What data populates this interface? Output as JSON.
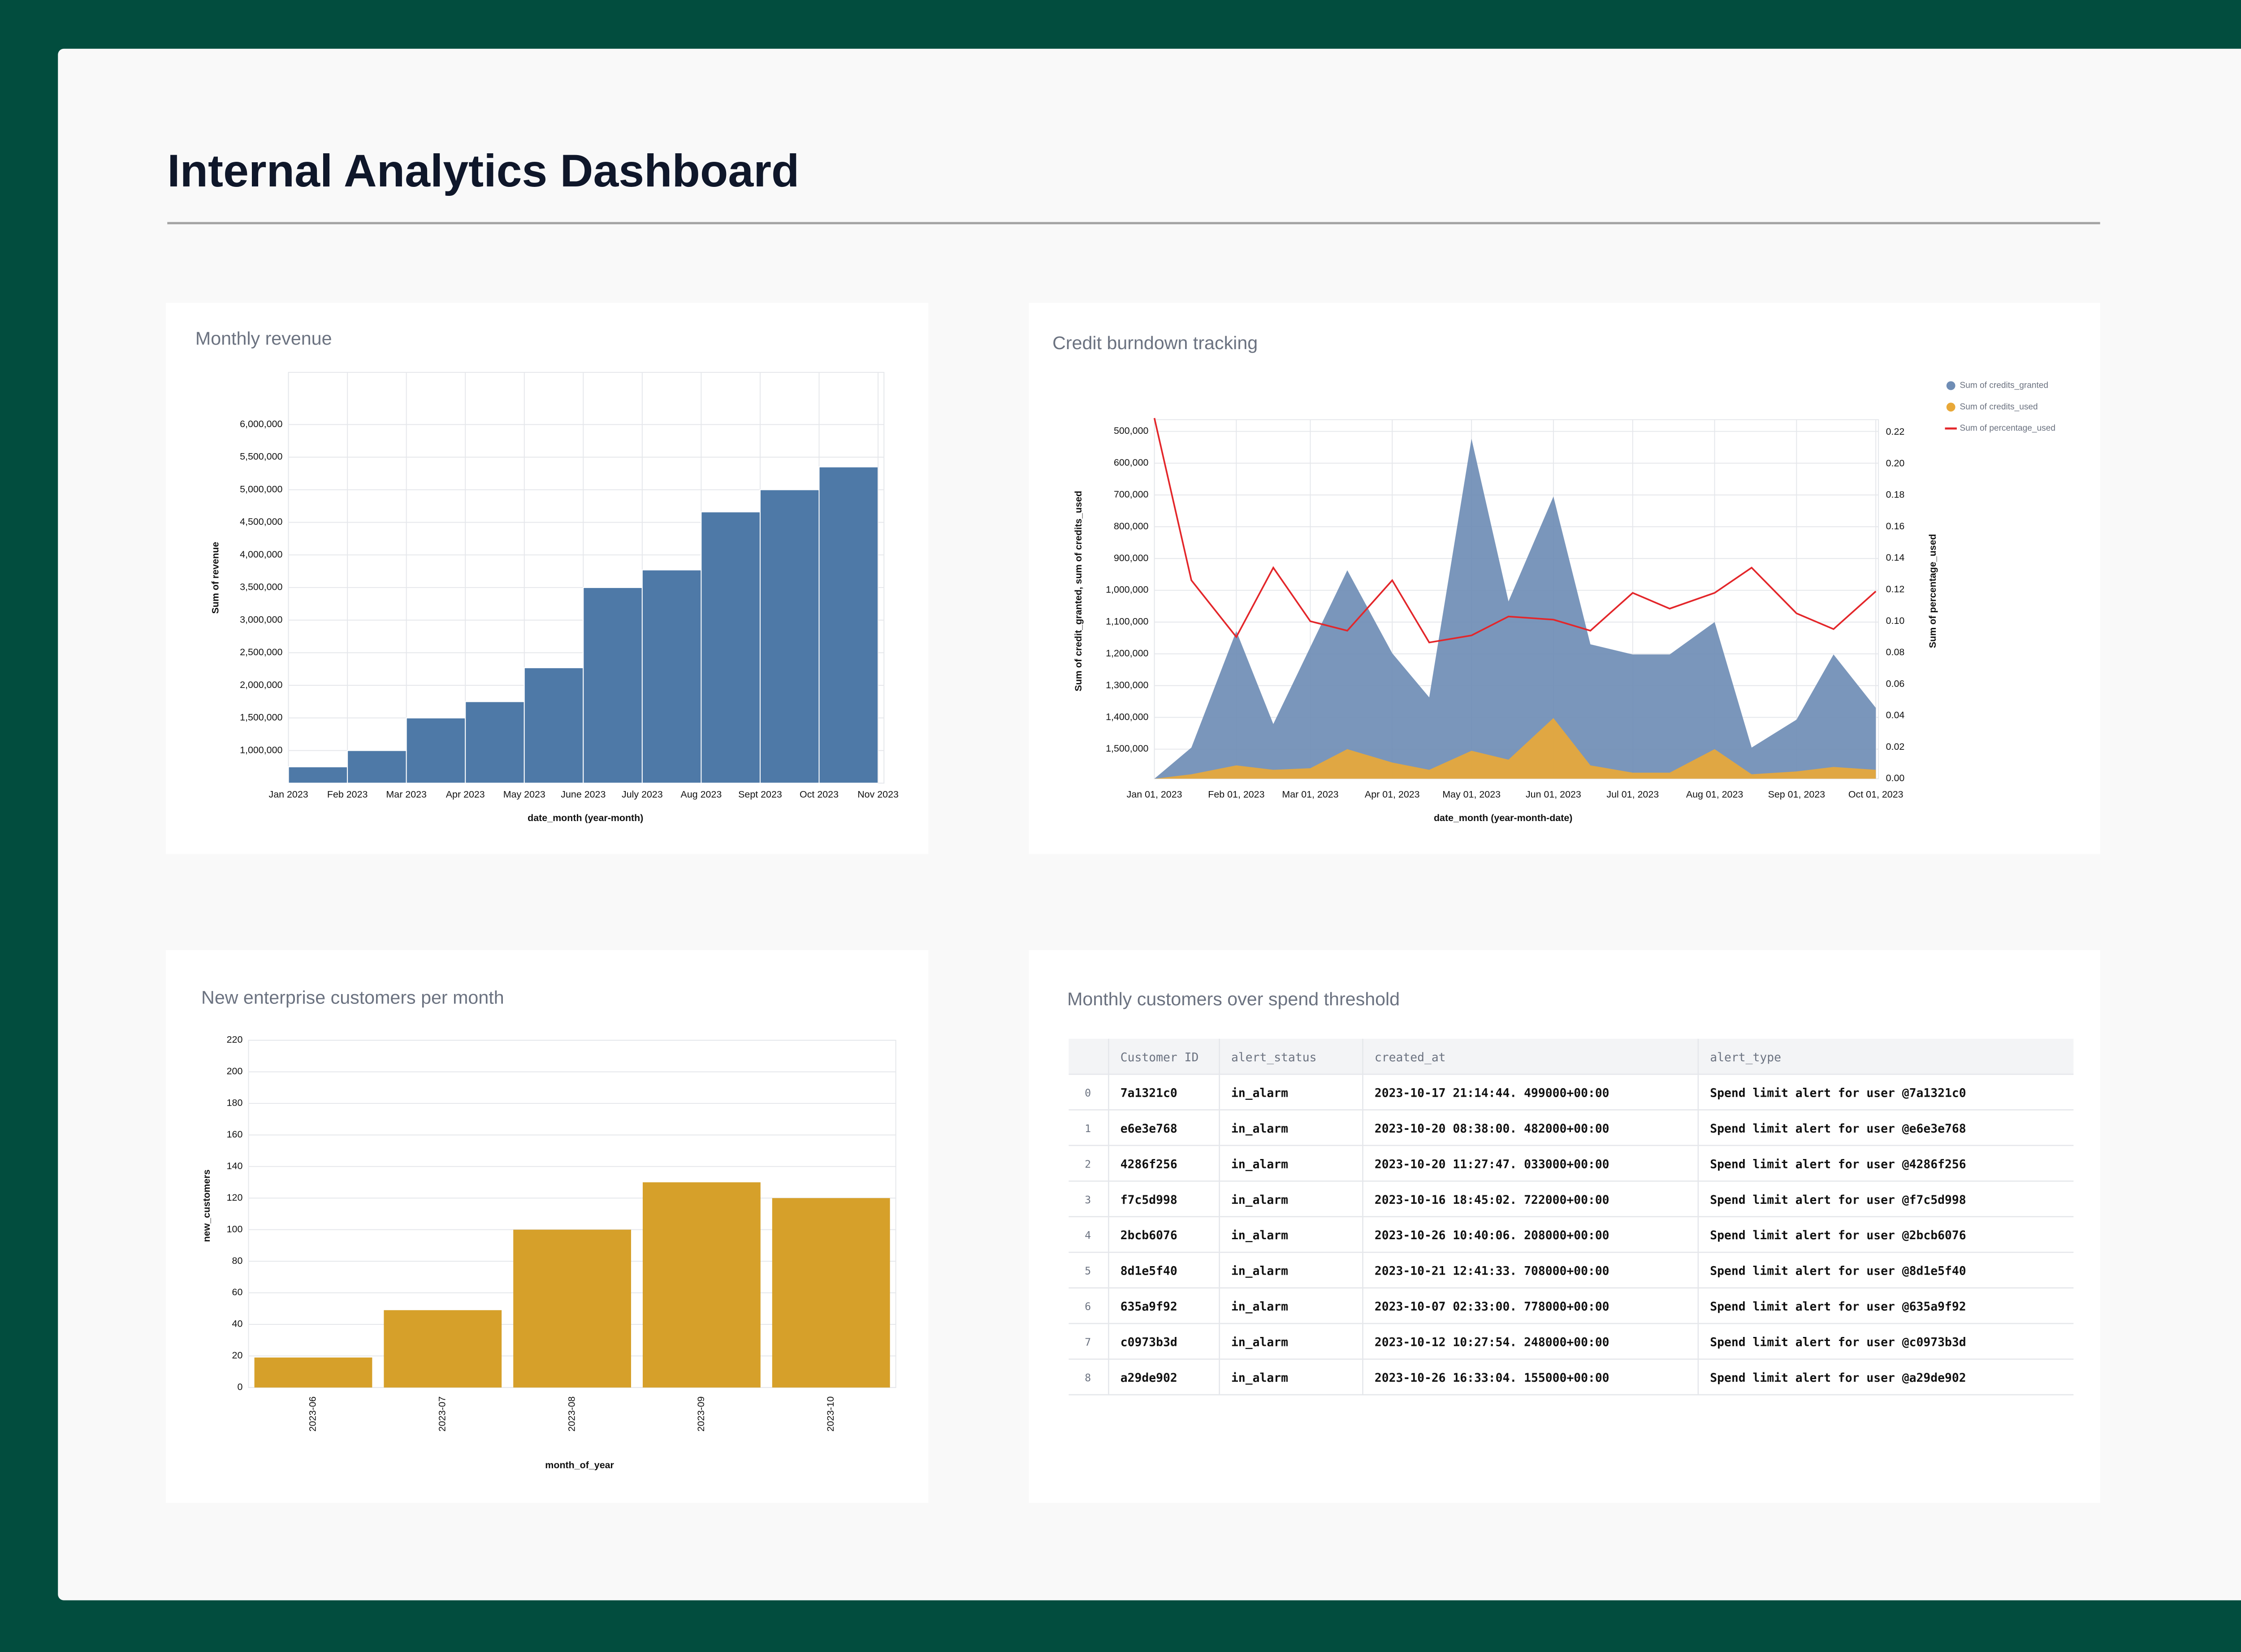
{
  "header": {
    "title": "Internal Analytics Dashboard"
  },
  "chart_data": [
    {
      "type": "bar",
      "title": "Monthly revenue",
      "y_label": "Sum of revenue",
      "x_label": "date_month (year-month)",
      "categories": [
        "Jan 2023",
        "Feb 2023",
        "Mar 2023",
        "Apr 2023",
        "May 2023",
        "June 2023",
        "July 2023",
        "Aug 2023",
        "Sept 2023",
        "Oct 2023",
        "Nov 2023"
      ],
      "values": [
        750000,
        1000000,
        1500000,
        1750000,
        2270000,
        3500000,
        3770000,
        4660000,
        5000000,
        5350000,
        null
      ],
      "color": "#4e79a7",
      "grid": true,
      "ylim": [
        500000,
        6800000
      ],
      "yticks": [
        {
          "value": 1000000,
          "label": "1,000,000"
        },
        {
          "value": 1500000,
          "label": "1,500,000"
        },
        {
          "value": 2000000,
          "label": "2,000,000"
        },
        {
          "value": 2500000,
          "label": "2,500,000"
        },
        {
          "value": 3000000,
          "label": "3,000,000"
        },
        {
          "value": 3500000,
          "label": "3,500,000"
        },
        {
          "value": 4000000,
          "label": "4,000,000"
        },
        {
          "value": 4500000,
          "label": "4,500,000"
        },
        {
          "value": 5000000,
          "label": "5,000,000"
        },
        {
          "value": 5500000,
          "label": "5,500,000"
        },
        {
          "value": 6000000,
          "label": "6,000,000"
        }
      ]
    },
    {
      "type": "area",
      "title": "Credit burndown tracking",
      "y_label": "Sum of credit_granted, sum of credits_used",
      "y2_label": "Sum of percentage_used",
      "x_label": "date_month (year-month-date)",
      "x": [
        "2023-01-01",
        "2023-01-15",
        "2023-02-01",
        "2023-02-15",
        "2023-03-01",
        "2023-03-15",
        "2023-04-01",
        "2023-04-15",
        "2023-05-01",
        "2023-05-15",
        "2023-06-01",
        "2023-06-15",
        "2023-07-01",
        "2023-07-15",
        "2023-08-01",
        "2023-08-15",
        "2023-09-01",
        "2023-09-15",
        "2023-10-01"
      ],
      "xlim": [
        "2023-01-01",
        "2023-10-02"
      ],
      "xticks": [
        {
          "value": "2023-01-01",
          "label": "Jan 01, 2023"
        },
        {
          "value": "2023-02-01",
          "label": "Feb 01, 2023"
        },
        {
          "value": "2023-03-01",
          "label": "Mar 01, 2023"
        },
        {
          "value": "2023-04-01",
          "label": "Apr 01, 2023"
        },
        {
          "value": "2023-05-01",
          "label": "May 01, 2023"
        },
        {
          "value": "2023-06-01",
          "label": "Jun 01, 2023"
        },
        {
          "value": "2023-07-01",
          "label": "Jul 01, 2023"
        },
        {
          "value": "2023-08-01",
          "label": "Aug 01, 2023"
        },
        {
          "value": "2023-09-01",
          "label": "Sep 01, 2023"
        },
        {
          "value": "2023-10-01",
          "label": "Oct 01, 2023"
        }
      ],
      "ylim": [
        1593000,
        463000
      ],
      "yticks": [
        {
          "value": 500000,
          "label": "500,000"
        },
        {
          "value": 600000,
          "label": "600,000"
        },
        {
          "value": 700000,
          "label": "700,000"
        },
        {
          "value": 800000,
          "label": "800,000"
        },
        {
          "value": 900000,
          "label": "900,000"
        },
        {
          "value": 1000000,
          "label": "1,000,000"
        },
        {
          "value": 1100000,
          "label": "1,100,000"
        },
        {
          "value": 1200000,
          "label": "1,200,000"
        },
        {
          "value": 1300000,
          "label": "1,300,000"
        },
        {
          "value": 1400000,
          "label": "1,400,000"
        },
        {
          "value": 1500000,
          "label": "1,500,000"
        }
      ],
      "y2lim": [
        0,
        0.228
      ],
      "y2ticks": [
        {
          "value": 0,
          "label": "0.00"
        },
        {
          "value": 0.02,
          "label": "0.02"
        },
        {
          "value": 0.04,
          "label": "0.04"
        },
        {
          "value": 0.06,
          "label": "0.06"
        },
        {
          "value": 0.08,
          "label": "0.08"
        },
        {
          "value": 0.1,
          "label": "0.10"
        },
        {
          "value": 0.12,
          "label": "0.12"
        },
        {
          "value": 0.14,
          "label": "0.14"
        },
        {
          "value": 0.16,
          "label": "0.16"
        },
        {
          "value": 0.18,
          "label": "0.18"
        },
        {
          "value": 0.2,
          "label": "0.20"
        },
        {
          "value": 0.22,
          "label": "0.22"
        }
      ],
      "grid": true,
      "legend": "top-right",
      "series": [
        {
          "name": "Sum of credits_granted",
          "type": "area",
          "color": "#6f8db5",
          "values": [
            1593000,
            1495000,
            1128000,
            1421000,
            1179000,
            937000,
            1198000,
            1337000,
            523000,
            1035000,
            705000,
            1170000,
            1202000,
            1202000,
            1100000,
            1495000,
            1407000,
            1202000,
            1370000
          ]
        },
        {
          "name": "Sum of credits_used",
          "type": "area",
          "color": "#e8a838",
          "values": [
            1593000,
            1579000,
            1551000,
            1565000,
            1560000,
            1500000,
            1542000,
            1565000,
            1505000,
            1533000,
            1402000,
            1551000,
            1574000,
            1574000,
            1500000,
            1579000,
            1570000,
            1556000,
            1565000
          ]
        },
        {
          "name": "Sum of percentage_used",
          "type": "line",
          "axis": "y2",
          "color": "#e3262a",
          "values": [
            0.229,
            0.126,
            0.09,
            0.134,
            0.1,
            0.094,
            0.126,
            0.0865,
            0.091,
            0.103,
            0.101,
            0.094,
            0.118,
            0.108,
            0.118,
            0.134,
            0.105,
            0.095,
            0.119
          ]
        }
      ]
    },
    {
      "type": "bar",
      "title": "New enterprise customers per month",
      "y_label": "new_customers",
      "x_label": "month_of_year",
      "categories": [
        "2023-06",
        "2023-07",
        "2023-08",
        "2023-09",
        "2023-10"
      ],
      "values": [
        19,
        49,
        100,
        130,
        120
      ],
      "color": "#d6a02a",
      "grid": true,
      "ylim": [
        0,
        220
      ],
      "yticks": [
        0,
        20,
        40,
        60,
        80,
        100,
        120,
        140,
        160,
        180,
        200,
        220
      ]
    }
  ],
  "table": {
    "title": "Monthly customers over spend threshold",
    "columns": [
      "Customer ID",
      "alert_status",
      "created_at",
      "alert_type"
    ],
    "rows": [
      [
        0,
        "7a1321c0",
        "in_alarm",
        "2023-10-17 21:14:44. 499000+00:00",
        "Spend limit alert for user @7a1321c0"
      ],
      [
        1,
        "e6e3e768",
        "in_alarm",
        "2023-10-20 08:38:00. 482000+00:00",
        "Spend limit alert for user @e6e3e768"
      ],
      [
        2,
        "4286f256",
        "in_alarm",
        "2023-10-20 11:27:47. 033000+00:00",
        "Spend limit alert for user @4286f256"
      ],
      [
        3,
        "f7c5d998",
        "in_alarm",
        "2023-10-16 18:45:02. 722000+00:00",
        "Spend limit alert for user @f7c5d998"
      ],
      [
        4,
        "2bcb6076",
        "in_alarm",
        "2023-10-26 10:40:06. 208000+00:00",
        "Spend limit alert for user @2bcb6076"
      ],
      [
        5,
        "8d1e5f40",
        "in_alarm",
        "2023-10-21 12:41:33. 708000+00:00",
        "Spend limit alert for user @8d1e5f40"
      ],
      [
        6,
        "635a9f92",
        "in_alarm",
        "2023-10-07 02:33:00. 778000+00:00",
        "Spend limit alert for user @635a9f92"
      ],
      [
        7,
        "c0973b3d",
        "in_alarm",
        "2023-10-12 10:27:54. 248000+00:00",
        "Spend limit alert for user @c0973b3d"
      ],
      [
        8,
        "a29de902",
        "in_alarm",
        "2023-10-26 16:33:04. 155000+00:00",
        "Spend limit alert for user @a29de902"
      ]
    ]
  }
}
